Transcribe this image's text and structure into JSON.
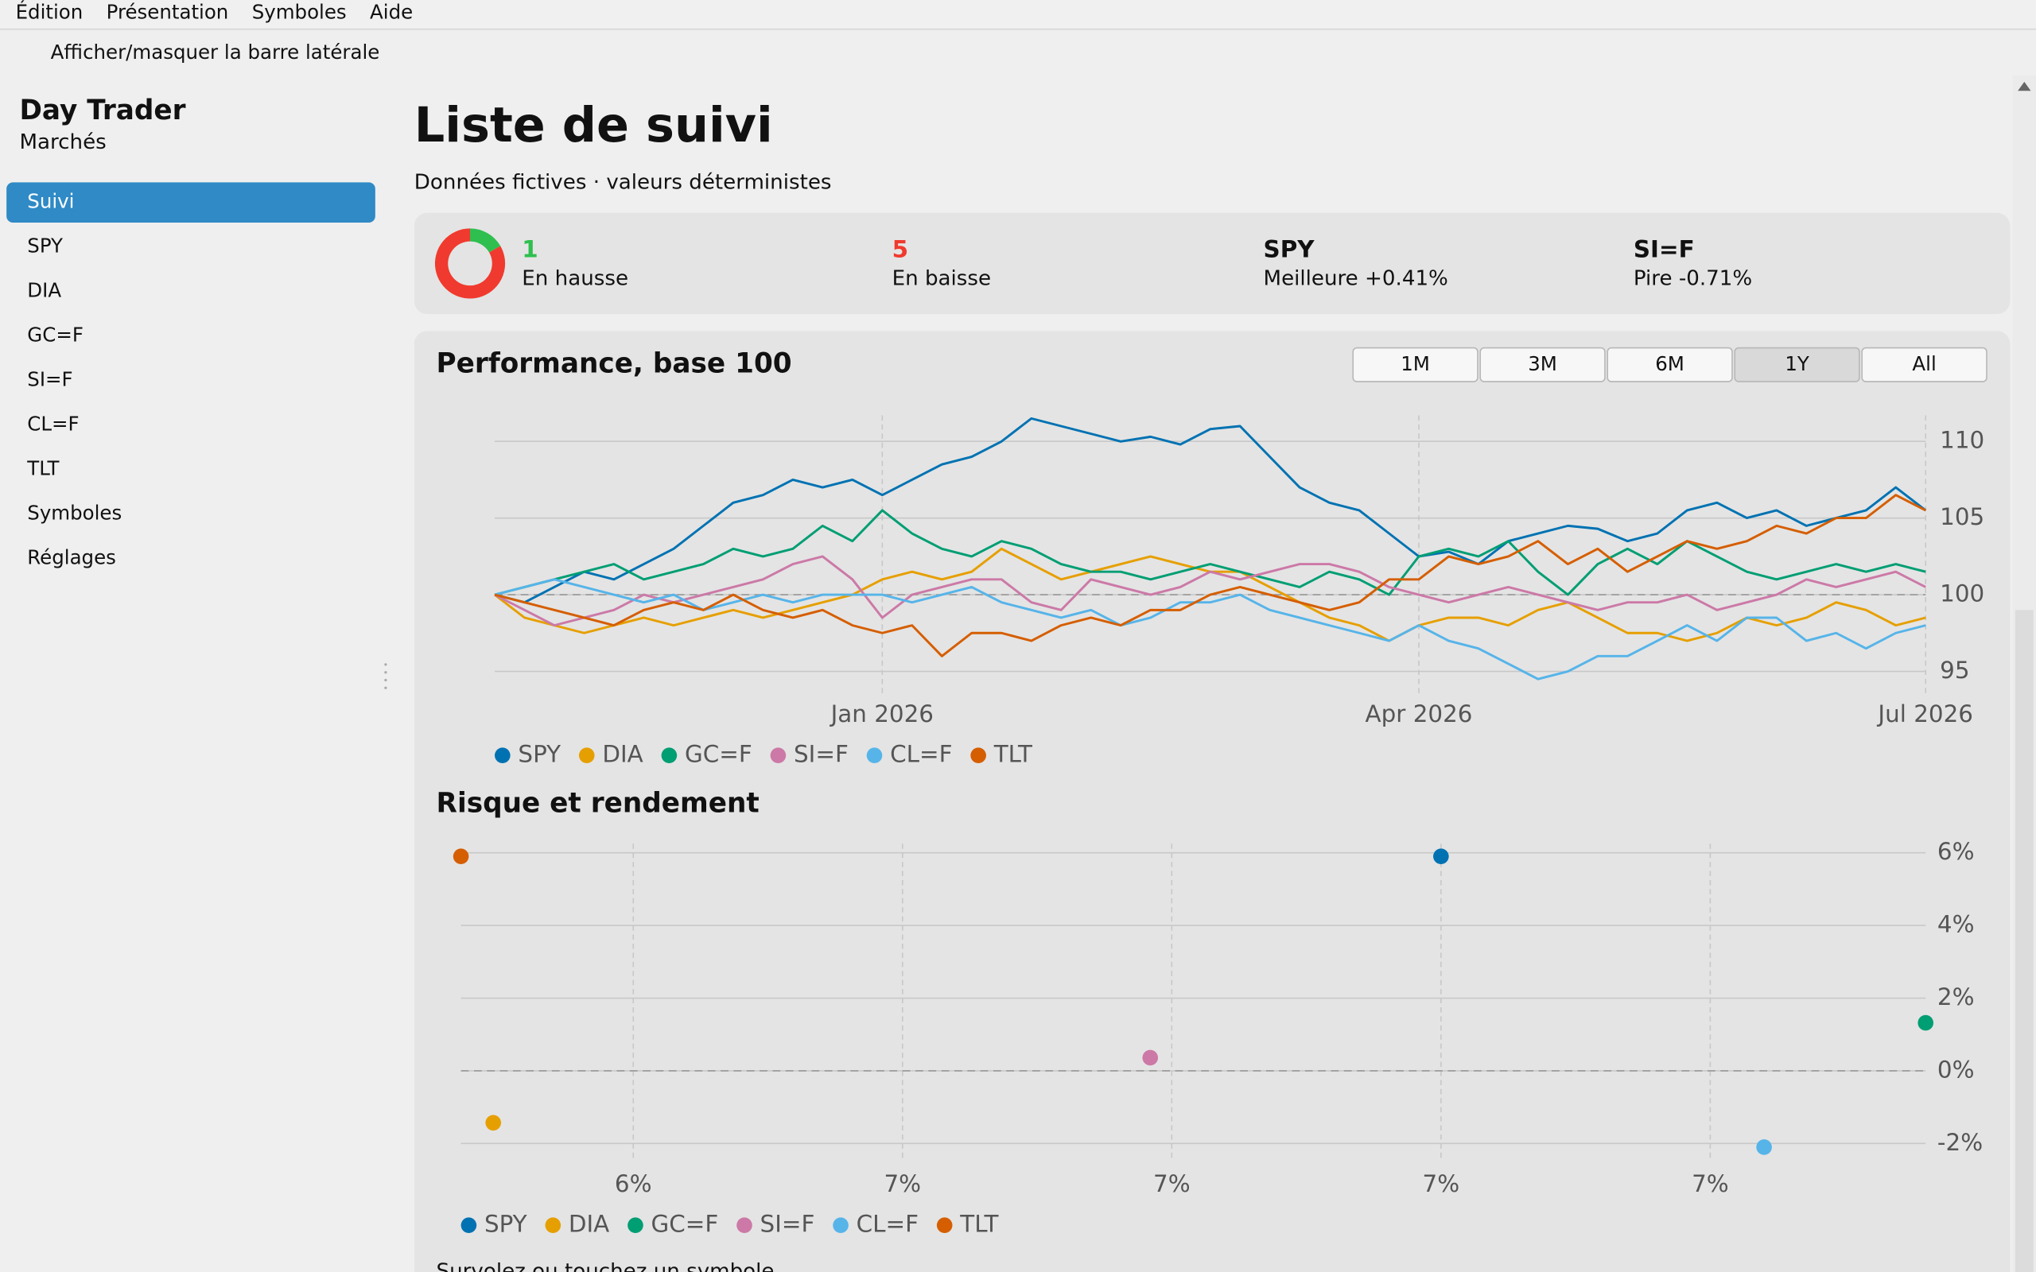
{
  "menu": [
    "Édition",
    "Présentation",
    "Symboles",
    "Aide"
  ],
  "toggle": "Afficher/masquer la barre latérale",
  "sidebar": {
    "title": "Day Trader",
    "subtitle": "Marchés",
    "items": [
      "Suivi",
      "SPY",
      "DIA",
      "GC=F",
      "SI=F",
      "CL=F",
      "TLT",
      "Symboles",
      "Réglages"
    ],
    "selected": 0
  },
  "header": {
    "title": "Liste de suivi",
    "subtitle": "Données fictives · valeurs déterministes"
  },
  "summary": {
    "up": {
      "count": 1,
      "label": "En hausse",
      "color": "#2fbf4f"
    },
    "down": {
      "count": 5,
      "label": "En baisse",
      "color": "#f03a2f"
    },
    "best": {
      "symbol": "SPY",
      "label": "Meilleure +0.41%"
    },
    "worst": {
      "symbol": "SI=F",
      "label": "Pire -0.71%"
    }
  },
  "range_buttons": {
    "options": [
      "1M",
      "3M",
      "6M",
      "1Y",
      "All"
    ],
    "selected": 3
  },
  "chart_data": [
    {
      "type": "line",
      "title": "Performance, base 100",
      "categories": [
        null,
        null,
        null,
        null,
        null,
        null,
        null,
        null,
        null,
        null,
        null,
        null,
        null,
        "Jan 2026",
        null,
        null,
        null,
        null,
        null,
        null,
        null,
        null,
        null,
        null,
        null,
        null,
        null,
        null,
        null,
        null,
        null,
        "Apr 2026",
        null,
        null,
        null,
        null,
        null,
        null,
        null,
        null,
        null,
        null,
        null,
        null,
        null,
        null,
        null,
        null,
        "Jul 2026"
      ],
      "ylim": [
        93.5,
        111.7
      ],
      "yticks": [
        95,
        100,
        105,
        110
      ],
      "baseline": 100,
      "grid": true,
      "series": [
        {
          "name": "SPY",
          "color": "#0072b2",
          "values": [
            100,
            99.5,
            100.5,
            101.5,
            101,
            102,
            103,
            104.5,
            106,
            106.5,
            107.5,
            107,
            107.5,
            106.5,
            107.5,
            108.5,
            109,
            110,
            111.5,
            111,
            110.5,
            110,
            110.3,
            109.8,
            110.8,
            111,
            109,
            107,
            106,
            105.5,
            104,
            102.5,
            102.8,
            102,
            103.5,
            104,
            104.5,
            104.3,
            103.5,
            104,
            105.5,
            106,
            105,
            105.5,
            104.5,
            105,
            105.5,
            107,
            105.5
          ]
        },
        {
          "name": "DIA",
          "color": "#e69f00",
          "values": [
            100,
            98.5,
            98,
            97.5,
            98,
            98.5,
            98,
            98.5,
            99,
            98.5,
            99,
            99.5,
            100,
            101,
            101.5,
            101,
            101.5,
            103,
            102,
            101,
            101.5,
            102,
            102.5,
            102,
            101.5,
            101.5,
            100.5,
            99.5,
            98.5,
            98,
            97,
            98,
            98.5,
            98.5,
            98,
            99,
            99.5,
            98.5,
            97.5,
            97.5,
            97,
            97.5,
            98.5,
            98,
            98.5,
            99.5,
            99,
            98,
            98.5
          ]
        },
        {
          "name": "GC=F",
          "color": "#009e73",
          "values": [
            100,
            100.5,
            101,
            101.5,
            102,
            101,
            101.5,
            102,
            103,
            102.5,
            103,
            104.5,
            103.5,
            105.5,
            104,
            103,
            102.5,
            103.5,
            103,
            102,
            101.5,
            101.5,
            101,
            101.5,
            102,
            101.5,
            101,
            100.5,
            101.5,
            101,
            100,
            102.5,
            103,
            102.5,
            103.5,
            101.5,
            100,
            102,
            103,
            102,
            103.5,
            102.5,
            101.5,
            101,
            101.5,
            102,
            101.5,
            102,
            101.5
          ]
        },
        {
          "name": "SI=F",
          "color": "#cc79a7",
          "values": [
            100,
            99,
            98,
            98.5,
            99,
            100,
            99.5,
            100,
            100.5,
            101,
            102,
            102.5,
            101,
            98.5,
            100,
            100.5,
            101,
            101,
            99.5,
            99,
            101,
            100.5,
            100,
            100.5,
            101.5,
            101,
            101.5,
            102,
            102,
            101.5,
            100.5,
            100,
            99.5,
            100,
            100.5,
            100,
            99.5,
            99,
            99.5,
            99.5,
            100,
            99,
            99.5,
            100,
            101,
            100.5,
            101,
            101.5,
            100.5
          ]
        },
        {
          "name": "CL=F",
          "color": "#56b4e9",
          "values": [
            100,
            100.5,
            101,
            100.5,
            100,
            99.5,
            100,
            99,
            99.5,
            100,
            99.5,
            100,
            100,
            100,
            99.5,
            100,
            100.5,
            99.5,
            99,
            98.5,
            99,
            98,
            98.5,
            99.5,
            99.5,
            100,
            99,
            98.5,
            98,
            97.5,
            97,
            98,
            97,
            96.5,
            95.5,
            94.5,
            95,
            96,
            96,
            97,
            98,
            97,
            98.5,
            98.5,
            97,
            97.5,
            96.5,
            97.5,
            98
          ]
        },
        {
          "name": "TLT",
          "color": "#d55e00",
          "values": [
            100,
            99.5,
            99,
            98.5,
            98,
            99,
            99.5,
            99,
            100,
            99,
            98.5,
            99,
            98,
            97.5,
            98,
            96,
            97.5,
            97.5,
            97,
            98,
            98.5,
            98,
            99,
            99,
            100,
            100.5,
            100,
            99.5,
            99,
            99.5,
            101,
            101,
            102.5,
            102,
            102.5,
            103.5,
            102,
            103,
            101.5,
            102.5,
            103.5,
            103,
            103.5,
            104.5,
            104,
            105,
            105,
            106.5,
            105.5
          ]
        }
      ]
    },
    {
      "type": "scatter",
      "title": "Risque et rendement",
      "xlim": [
        6.09,
        7.45
      ],
      "xticks": [
        {
          "value": 6.25,
          "label": "6%"
        },
        {
          "value": 6.5,
          "label": "7%"
        },
        {
          "value": 6.75,
          "label": "7%"
        },
        {
          "value": 7.0,
          "label": "7%"
        },
        {
          "value": 7.25,
          "label": "7%"
        }
      ],
      "ylim": [
        -2.5,
        6.25
      ],
      "yticks": [
        {
          "value": 6,
          "label": "6%"
        },
        {
          "value": 4,
          "label": "4%"
        },
        {
          "value": 2,
          "label": "2%"
        },
        {
          "value": 0,
          "label": "0%"
        },
        {
          "value": -2,
          "label": "-2%"
        }
      ],
      "baseline": 0,
      "grid": true,
      "series": [
        {
          "name": "SPY",
          "color": "#0072b2",
          "x": [
            7.0
          ],
          "values": [
            5.9
          ]
        },
        {
          "name": "DIA",
          "color": "#e69f00",
          "x": [
            6.12
          ],
          "values": [
            -1.43
          ]
        },
        {
          "name": "GC=F",
          "color": "#009e73",
          "x": [
            7.45
          ],
          "values": [
            1.32
          ]
        },
        {
          "name": "SI=F",
          "color": "#cc79a7",
          "x": [
            6.73
          ],
          "values": [
            0.36
          ]
        },
        {
          "name": "CL=F",
          "color": "#56b4e9",
          "x": [
            7.3
          ],
          "values": [
            -2.1
          ]
        },
        {
          "name": "TLT",
          "color": "#d55e00",
          "x": [
            6.09
          ],
          "values": [
            5.9
          ]
        }
      ]
    }
  ],
  "footer_hint": "Survolez ou touchez un symbole"
}
